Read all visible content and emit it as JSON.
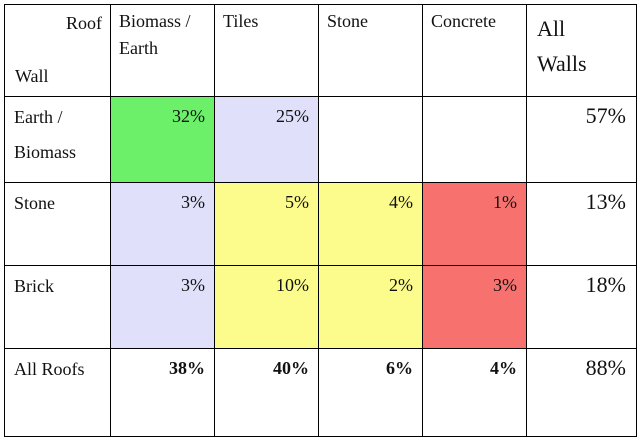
{
  "corner": {
    "roof_label": "Roof",
    "wall_label": "Wall"
  },
  "columns": [
    {
      "lines": [
        "Biomass /",
        "Earth"
      ]
    },
    {
      "lines": [
        "Tiles"
      ]
    },
    {
      "lines": [
        "Stone"
      ]
    },
    {
      "lines": [
        "Concrete"
      ]
    },
    {
      "lines": [
        "All",
        "Walls"
      ]
    }
  ],
  "rows": [
    {
      "lines": [
        "Earth /",
        "Biomass"
      ],
      "cells": [
        "32%",
        "25%",
        "",
        ""
      ],
      "total": "57%"
    },
    {
      "lines": [
        "Stone"
      ],
      "cells": [
        "3%",
        "5%",
        "4%",
        "1%"
      ],
      "total": "13%"
    },
    {
      "lines": [
        "Brick"
      ],
      "cells": [
        "3%",
        "10%",
        "2%",
        "3%"
      ],
      "total": "18%"
    },
    {
      "lines": [
        "All Roofs"
      ],
      "cells": [
        "38%",
        "40%",
        "6%",
        "4%"
      ],
      "total": "88%"
    }
  ],
  "colors": {
    "green": "#6cf06a",
    "lavender": "#e0e0fb",
    "yellow": "#fcfc8c",
    "red": "#f7716f",
    "white": "#ffffff"
  },
  "cell_colors": [
    [
      "green",
      "lavender",
      "white",
      "white"
    ],
    [
      "lavender",
      "yellow",
      "yellow",
      "red"
    ],
    [
      "lavender",
      "yellow",
      "yellow",
      "red"
    ],
    [
      "white",
      "white",
      "white",
      "white"
    ]
  ]
}
